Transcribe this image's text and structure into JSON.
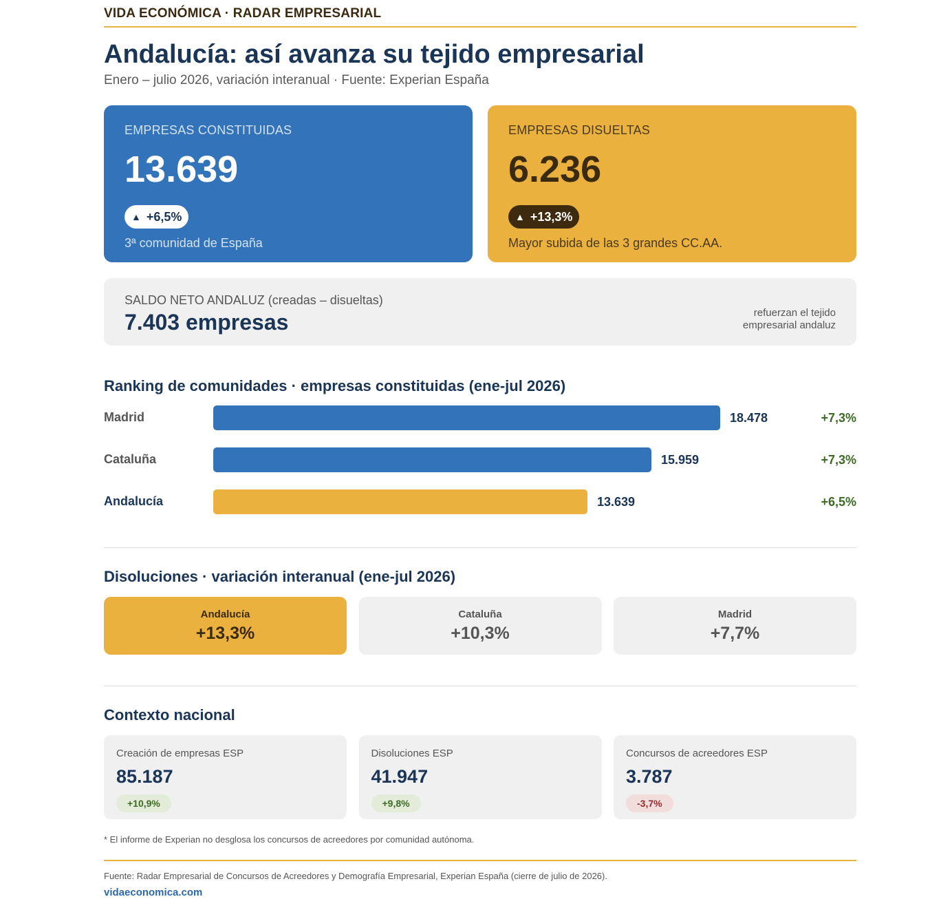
{
  "kicker": "VIDA ECONÓMICA · RADAR EMPRESARIAL",
  "title": "Andalucía: así avanza su tejido empresarial",
  "subtitle": "Enero – julio 2026, variación interanual · Fuente: Experian España",
  "colors": {
    "blue": "#3373b9",
    "gold": "#ebb13f",
    "navy": "#1a3556",
    "green": "#3d6a24",
    "red": "#9a2a2a",
    "grey_panel": "#f0f0f0"
  },
  "cards": {
    "constituidas": {
      "label": "EMPRESAS CONSTITUIDAS",
      "value": "13.639",
      "change": "+6,5%",
      "arrow": "▲",
      "note": "3ª comunidad de España"
    },
    "disueltas": {
      "label": "EMPRESAS DISUELTAS",
      "value": "6.236",
      "change": "+13,3%",
      "arrow": "▲",
      "note": "Mayor subida de las 3 grandes CC.AA."
    }
  },
  "saldo": {
    "label": "SALDO NETO ANDALUZ (creadas – disueltas)",
    "value": "7.403 empresas",
    "side_line1": "refuerzan el tejido",
    "side_line2": "empresarial andaluz"
  },
  "ranking": {
    "title": "Ranking de comunidades · empresas constituidas (ene-jul 2026)"
  },
  "dissolutions": {
    "title": "Disoluciones · variación interanual (ene-jul 2026)"
  },
  "context": {
    "title": "Contexto nacional",
    "items": [
      {
        "label": "Creación de empresas ESP",
        "value": "85.187",
        "change": "+10,9%",
        "trend": "up"
      },
      {
        "label": "Disoluciones ESP",
        "value": "41.947",
        "change": "+9,8%",
        "trend": "up"
      },
      {
        "label": "Concursos de acreedores ESP",
        "value": "3.787",
        "change": "-3,7%",
        "trend": "down"
      }
    ]
  },
  "footnote": "* El informe de Experian no desglosa los concursos de acreedores por comunidad autónoma.",
  "source": "Fuente: Radar Empresarial de Concursos de Acreedores y Demografía Empresarial, Experian España (cierre de julio de 2026).",
  "site": "vidaeconomica.com",
  "chart_data": [
    {
      "type": "bar",
      "orientation": "horizontal",
      "title": "Ranking de comunidades · empresas constituidas (ene-jul 2026)",
      "categories": [
        "Madrid",
        "Cataluña",
        "Andalucía"
      ],
      "values": [
        18478,
        15959,
        13639
      ],
      "value_labels": [
        "18.478",
        "15.959",
        "13.639"
      ],
      "changes": [
        "+7,3%",
        "+7,3%",
        "+6,5%"
      ],
      "highlight": "Andalucía",
      "xlim": [
        0,
        18478
      ],
      "grid": false
    },
    {
      "type": "table",
      "title": "Disoluciones · variación interanual (ene-jul 2026)",
      "categories": [
        "Andalucía",
        "Cataluña",
        "Madrid"
      ],
      "values": [
        13.3,
        10.3,
        7.7
      ],
      "value_labels": [
        "+13,3%",
        "+10,3%",
        "+7,7%"
      ],
      "highlight": "Andalucía"
    }
  ]
}
